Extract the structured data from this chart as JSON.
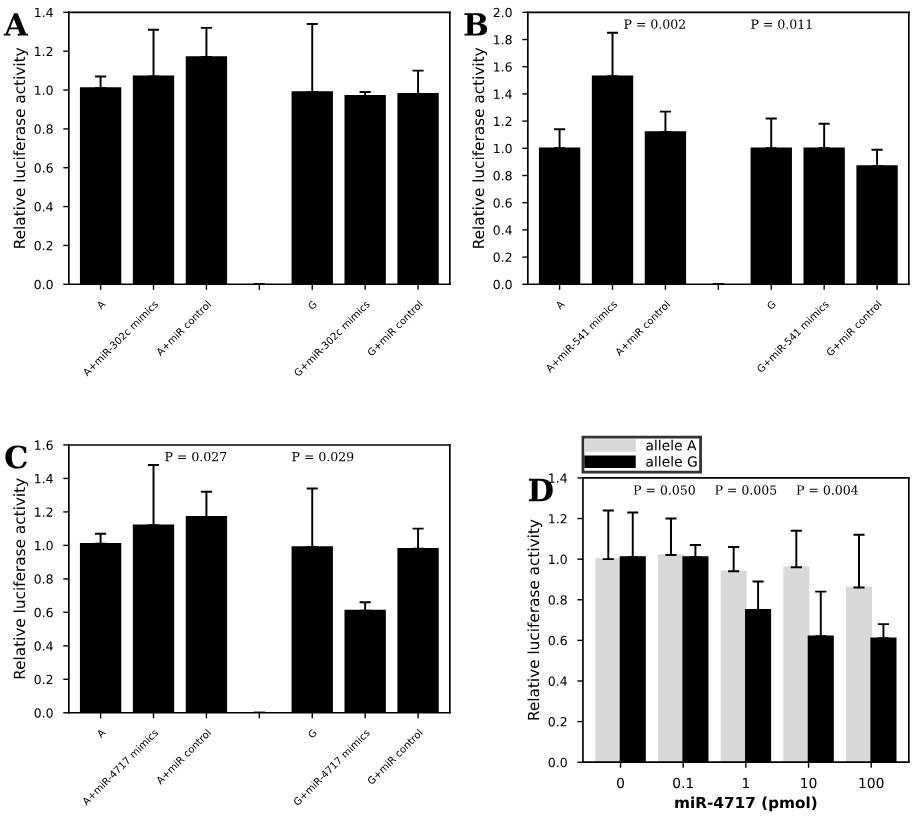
{
  "chart_data": [
    {
      "type": "bar",
      "title": "A",
      "ylabel": "Relative luciferase activity",
      "categories": [
        "A",
        "A+miR-302c mimics",
        "A+miR control",
        null,
        "G",
        "G+miR-302c mimics",
        "G+miR control"
      ],
      "values": [
        1.01,
        1.07,
        1.17,
        null,
        0.99,
        0.97,
        0.98
      ],
      "color": "#000000",
      "errors": [
        [
          1.01,
          1.07
        ],
        [
          1.07,
          1.31
        ],
        [
          1.17,
          1.32
        ],
        null,
        [
          0.99,
          1.34
        ],
        [
          0.97,
          0.99
        ],
        [
          0.98,
          1.1
        ]
      ],
      "ylim": [
        0,
        1.4
      ],
      "yticks": [
        {
          "value": 0,
          "label": "0.0"
        },
        0.2,
        0.4,
        0.6,
        0.8,
        {
          "value": 1,
          "label": "1.0"
        },
        1.2,
        1.4
      ],
      "grid": false
    },
    {
      "type": "bar",
      "title": "B",
      "ylabel": "Relative luciferase activity",
      "categories": [
        "A",
        "A+miR-541 mimics",
        "A+miR control",
        null,
        "G",
        "G+miR-541 mimics",
        "G+miR control"
      ],
      "values": [
        1.0,
        1.53,
        1.12,
        null,
        1.0,
        1.0,
        0.87
      ],
      "color": "#000000",
      "errors": [
        [
          1.0,
          1.14
        ],
        [
          1.53,
          1.85
        ],
        [
          1.12,
          1.27
        ],
        null,
        [
          1.0,
          1.22
        ],
        [
          1.0,
          1.18
        ],
        [
          0.87,
          0.99
        ]
      ],
      "ylim": [
        0,
        2.0
      ],
      "yticks": [
        {
          "value": 0,
          "label": "0.0"
        },
        0.2,
        0.4,
        0.6,
        0.8,
        {
          "value": 1,
          "label": "1.0"
        },
        1.2,
        1.4,
        1.6,
        1.8,
        {
          "value": 2,
          "label": "2.0"
        }
      ],
      "grid": false,
      "annotations": [
        "P = 0.002",
        "P = 0.011"
      ]
    },
    {
      "type": "bar",
      "title": "C",
      "ylabel": "Relative luciferase activity",
      "categories": [
        "A",
        "A+miR-4717 mimics",
        "A+miR control",
        null,
        "G",
        "G+miR-4717 mimics",
        "G+miR control"
      ],
      "values": [
        1.01,
        1.12,
        1.17,
        null,
        0.99,
        0.61,
        0.98
      ],
      "color": "#000000",
      "errors": [
        [
          1.01,
          1.07
        ],
        [
          1.12,
          1.48
        ],
        [
          1.17,
          1.32
        ],
        null,
        [
          0.99,
          1.34
        ],
        [
          0.61,
          0.66
        ],
        [
          0.98,
          1.1
        ]
      ],
      "ylim": [
        0,
        1.6
      ],
      "yticks": [
        {
          "value": 0,
          "label": "0.0"
        },
        0.2,
        0.4,
        0.6,
        0.8,
        {
          "value": 1,
          "label": "1.0"
        },
        1.2,
        1.4,
        1.6
      ],
      "grid": false,
      "annotations": [
        "P = 0.027",
        "P = 0.029"
      ]
    },
    {
      "type": "bar",
      "title": "D",
      "ylabel": "Relative luciferase activity",
      "xlabel": "miR-4717 (pmol)",
      "categories": [
        "0",
        "0.1",
        "1",
        "10",
        "100"
      ],
      "series": [
        {
          "name": "allele A",
          "color": "#d8d8d8",
          "values": [
            1.0,
            1.02,
            0.94,
            0.96,
            0.86
          ],
          "errors": [
            [
              1.0,
              1.24
            ],
            [
              1.02,
              1.2
            ],
            [
              0.94,
              1.06
            ],
            [
              0.96,
              1.14
            ],
            [
              0.86,
              1.12
            ]
          ]
        },
        {
          "name": "allele G",
          "color": "#000000",
          "values": [
            1.01,
            1.01,
            0.75,
            0.62,
            0.61
          ],
          "errors": [
            [
              1.01,
              1.23
            ],
            [
              1.01,
              1.07
            ],
            [
              0.75,
              0.89
            ],
            [
              0.62,
              0.84
            ],
            [
              0.61,
              0.68
            ]
          ]
        }
      ],
      "ylim": [
        0,
        1.4
      ],
      "yticks": [
        {
          "value": 0,
          "label": "0.0"
        },
        0.2,
        0.4,
        0.6,
        0.8,
        {
          "value": 1,
          "label": "1.0"
        },
        1.2,
        1.4
      ],
      "grid": false,
      "legend": "top left",
      "annotations": [
        "P = 0.050",
        "P = 0.005",
        "P = 0.004"
      ]
    }
  ]
}
